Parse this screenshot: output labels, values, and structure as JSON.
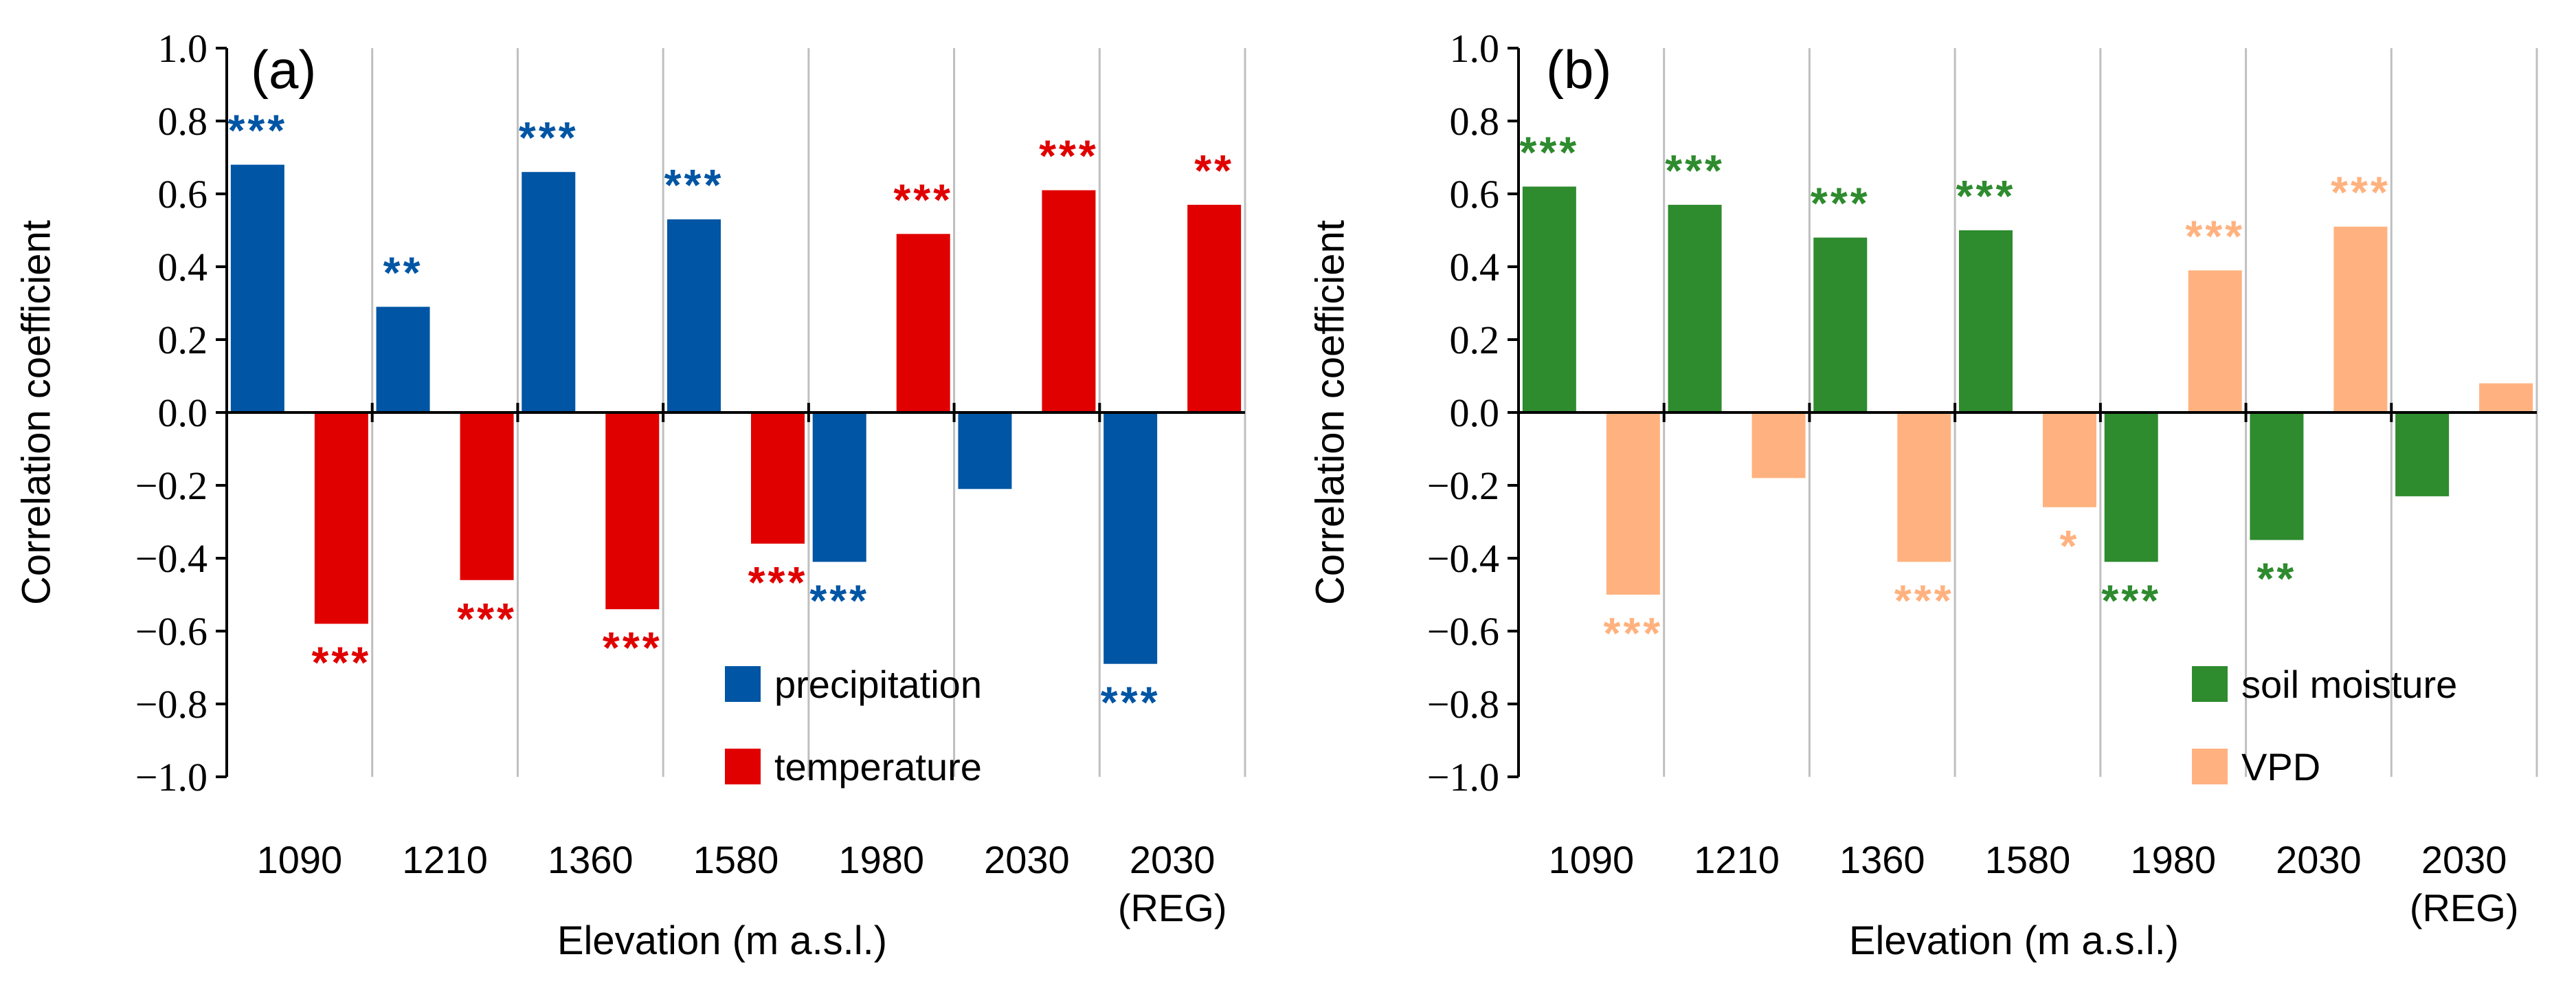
{
  "chart_data": [
    {
      "type": "bar",
      "panel_label": "(a)",
      "categories": [
        "1090",
        "1210",
        "1360",
        "1580",
        "1980",
        "2030",
        "2030 (REG)"
      ],
      "category_lines": [
        [
          "1090"
        ],
        [
          "1210"
        ],
        [
          "1360"
        ],
        [
          "1580"
        ],
        [
          "1980"
        ],
        [
          "2030"
        ],
        [
          "2030",
          "(REG)"
        ]
      ],
      "series": [
        {
          "name": "precipitation",
          "color": "#0055A4",
          "values": [
            0.68,
            0.29,
            0.66,
            0.53,
            -0.41,
            -0.21,
            -0.69
          ],
          "significance": [
            "***",
            "**",
            "***",
            "***",
            "***",
            "",
            "***"
          ]
        },
        {
          "name": "temperature",
          "color": "#E00000",
          "values": [
            -0.58,
            -0.46,
            -0.54,
            -0.36,
            0.49,
            0.61,
            0.57
          ],
          "significance": [
            "***",
            "***",
            "***",
            "***",
            "***",
            "***",
            "**"
          ]
        }
      ],
      "xlabel": "Elevation (m a.s.l.)",
      "ylabel": "Correlation coefficient",
      "ylim": [
        -1.0,
        1.0
      ],
      "yticks": [
        "1.0",
        "0.8",
        "0.6",
        "0.4",
        "0.2",
        "0.0",
        "−0.2",
        "−0.4",
        "−0.6",
        "−0.8",
        "−1.0"
      ],
      "legend_position": "bottom-right"
    },
    {
      "type": "bar",
      "panel_label": "(b)",
      "categories": [
        "1090",
        "1210",
        "1360",
        "1580",
        "1980",
        "2030",
        "2030 (REG)"
      ],
      "category_lines": [
        [
          "1090"
        ],
        [
          "1210"
        ],
        [
          "1360"
        ],
        [
          "1580"
        ],
        [
          "1980"
        ],
        [
          "2030"
        ],
        [
          "2030",
          "(REG)"
        ]
      ],
      "series": [
        {
          "name": "soil moisture",
          "color": "#2E8B2E",
          "values": [
            0.62,
            0.57,
            0.48,
            0.5,
            -0.41,
            -0.35,
            -0.23
          ],
          "significance": [
            "***",
            "***",
            "***",
            "***",
            "***",
            "**",
            ""
          ]
        },
        {
          "name": "VPD",
          "color": "#FFB27F",
          "values": [
            -0.5,
            -0.18,
            -0.41,
            -0.26,
            0.39,
            0.51,
            0.08
          ],
          "significance": [
            "***",
            "",
            "***",
            "*",
            "***",
            "***",
            ""
          ]
        }
      ],
      "xlabel": "Elevation (m a.s.l.)",
      "ylabel": "Correlation coefficient",
      "ylim": [
        -1.0,
        1.0
      ],
      "yticks": [
        "1.0",
        "0.8",
        "0.6",
        "0.4",
        "0.2",
        "0.0",
        "−0.2",
        "−0.4",
        "−0.6",
        "−0.8",
        "−1.0"
      ],
      "legend_position": "bottom-right"
    }
  ]
}
